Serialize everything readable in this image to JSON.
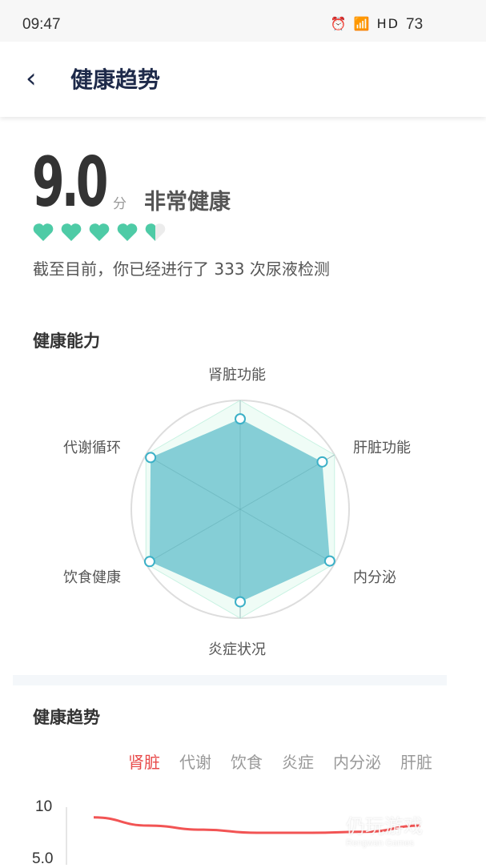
{
  "status_bar": {
    "time": "09:47",
    "icons": [
      "alarm-icon",
      "wifi-icon",
      "signal-4g-icon",
      "hd-icon"
    ],
    "battery": "73"
  },
  "header": {
    "back_icon": "chevron-left-icon",
    "title": "健康趋势"
  },
  "summary": {
    "score": "9.0",
    "unit": "分",
    "level": "非常健康",
    "hearts_rating": 4.5,
    "hearts_max": 5,
    "heart_color": "#4ecba6",
    "count_text": "截至目前，你已经进行了 333 次尿液检测"
  },
  "radar": {
    "title": "健康能力",
    "chart_data": {
      "type": "radar",
      "axes": [
        "肾脏功能",
        "肝脏功能",
        "内分泌",
        "炎症状况",
        "饮食健康",
        "代谢循环"
      ],
      "values": [
        8.3,
        8.7,
        9.5,
        8.5,
        9.6,
        9.5
      ],
      "max": 10,
      "fill_color": "#7ecbd4",
      "point_color": "#3bb0c7"
    }
  },
  "trend": {
    "title": "健康趋势",
    "tabs": [
      "肾脏",
      "代谢",
      "饮食",
      "炎症",
      "内分泌",
      "肝脏"
    ],
    "active_tab": 0,
    "chart_data": {
      "type": "line",
      "y_ticks": [
        "10",
        "5.0"
      ],
      "series": [
        {
          "values": [
            9.0,
            8.2,
            7.8,
            7.5,
            7.5,
            7.6,
            8.2
          ]
        }
      ],
      "line_color": "#f25454"
    }
  },
  "watermark": {
    "text": "仍玩游戏",
    "subtext": "Rengwan Games"
  }
}
